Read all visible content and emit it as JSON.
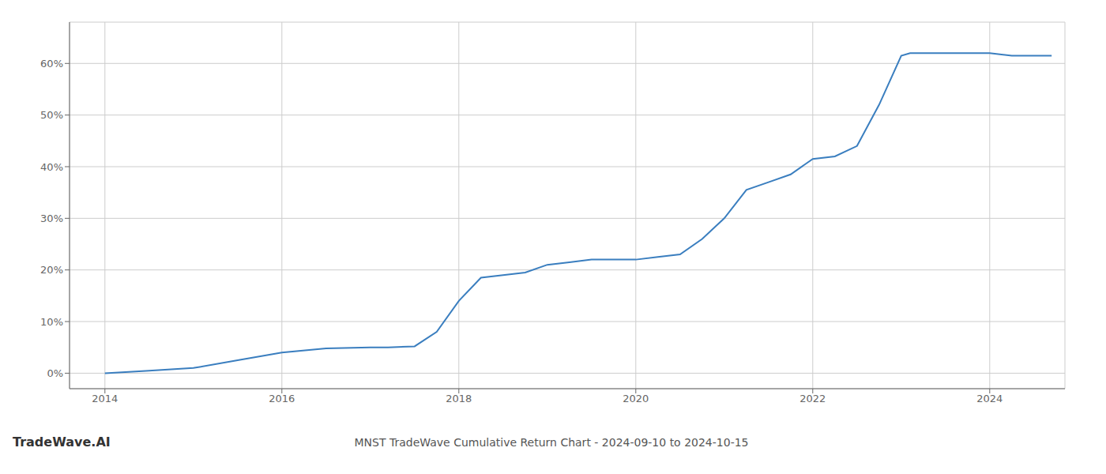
{
  "chart_data": {
    "type": "line",
    "title": "MNST TradeWave Cumulative Return Chart - 2024-09-10 to 2024-10-15",
    "annotations": [
      {
        "text": "TradeWave.AI"
      }
    ],
    "x": [
      2014.0,
      2014.5,
      2015.0,
      2015.5,
      2016.0,
      2016.5,
      2017.0,
      2017.2,
      2017.5,
      2017.75,
      2018.0,
      2018.25,
      2018.5,
      2018.75,
      2019.0,
      2019.25,
      2019.5,
      2019.75,
      2020.0,
      2020.25,
      2020.5,
      2020.75,
      2021.0,
      2021.25,
      2021.5,
      2021.75,
      2022.0,
      2022.25,
      2022.5,
      2022.75,
      2023.0,
      2023.1,
      2023.25,
      2023.5,
      2023.75,
      2024.0,
      2024.25,
      2024.5,
      2024.7
    ],
    "values": [
      0.0,
      0.5,
      1.0,
      2.5,
      4.0,
      4.8,
      5.0,
      5.0,
      5.2,
      8.0,
      14.0,
      18.5,
      19.0,
      19.5,
      21.0,
      21.5,
      22.0,
      22.0,
      22.0,
      22.5,
      23.0,
      26.0,
      30.0,
      35.5,
      37.0,
      38.5,
      41.5,
      42.0,
      44.0,
      52.0,
      61.5,
      62.0,
      62.0,
      62.0,
      62.0,
      62.0,
      61.5,
      61.5,
      61.5
    ],
    "color": "#3a7ebf",
    "xlim": [
      2013.6,
      2024.85
    ],
    "ylim": [
      -3,
      68
    ],
    "xticks": [
      2014,
      2016,
      2018,
      2020,
      2022,
      2024
    ],
    "yticks": [
      {
        "value": 0,
        "label": "0%"
      },
      {
        "value": 10,
        "label": "10%"
      },
      {
        "value": 20,
        "label": "20%"
      },
      {
        "value": 30,
        "label": "30%"
      },
      {
        "value": 40,
        "label": "40%"
      },
      {
        "value": 50,
        "label": "50%"
      },
      {
        "value": 60,
        "label": "60%"
      }
    ],
    "grid": true
  }
}
